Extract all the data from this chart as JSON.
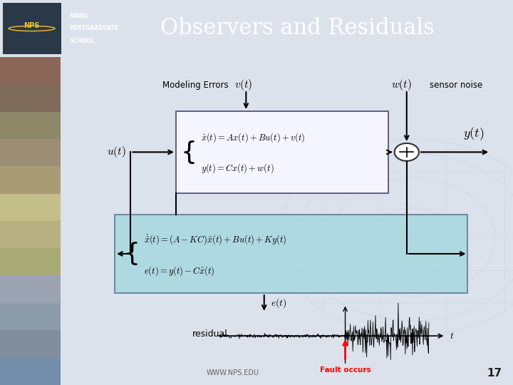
{
  "title": "Observers and Residuals",
  "title_fontsize": 22,
  "title_color": "white",
  "header_bg": "#4a5a72",
  "slide_bg": "#dce2ec",
  "modeling_errors_label": "Modeling Errors",
  "sensor_noise_label": "sensor noise",
  "residual_label": "residual",
  "fault_label": "Fault occurs",
  "page_number": "17",
  "url": "WWW.NPS.EDU",
  "box1_bg": "#f5f5ff",
  "box1_edge": "#555577",
  "box2_bg": "#aad8e0",
  "box2_edge": "#557799",
  "globe_color": "#c8d4e8"
}
